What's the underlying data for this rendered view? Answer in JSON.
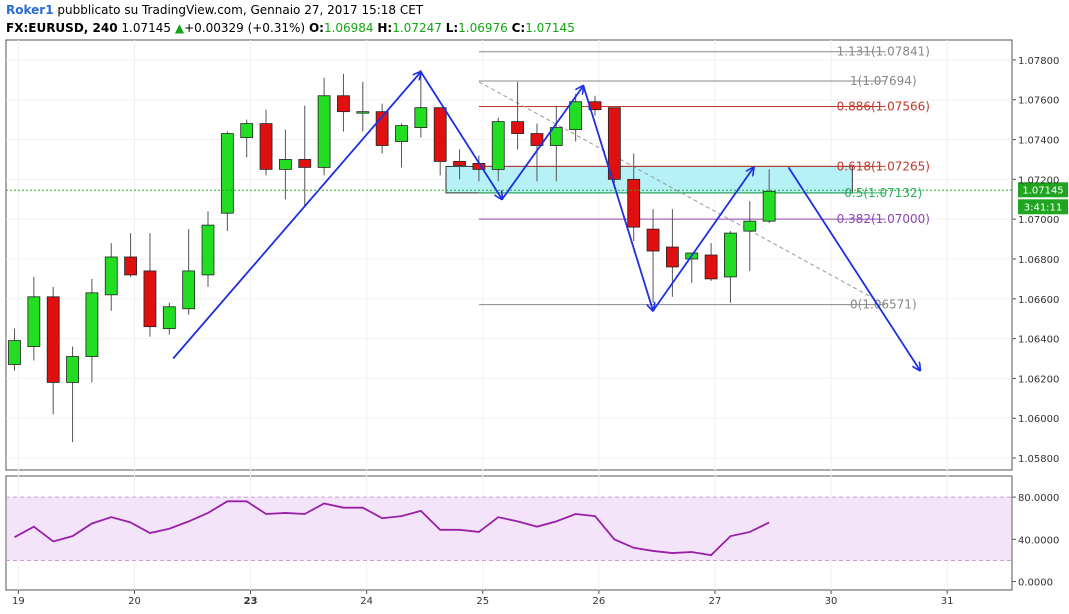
{
  "header": {
    "author": "Roker1",
    "published_text": " pubblicato su TradingView.com, Gennaio 27, 2017 15:18 CET",
    "symbol": "FX:EURUSD, 240",
    "last": "1.07145",
    "change_arrow": "▲",
    "change": "+0.00329 (+0.31%)",
    "o_label": "O:",
    "o_value": "1.06984",
    "h_label": "H:",
    "h_value": "1.07247",
    "l_label": "L:",
    "l_value": "1.06976",
    "c_label": "C:",
    "c_value": "1.07145"
  },
  "colors": {
    "bull": "#22dd22",
    "bear": "#e01010",
    "wick": "#555555",
    "arrows": "#1f2fe0",
    "last_price_line": "#22aa22",
    "zone_fill": "#a8eef5",
    "rsi_band_fill": "#f3e4fa",
    "rsi_line": "#9a1fa8"
  },
  "chart_data": {
    "type": "candlestick",
    "symbol": "FX:EURUSD",
    "interval": "240",
    "y_ticks": [
      "1.05800",
      "1.06000",
      "1.06200",
      "1.06400",
      "1.06600",
      "1.06800",
      "1.07000",
      "1.07200",
      "1.07400",
      "1.07600",
      "1.07800"
    ],
    "ylim": [
      1.0574,
      1.079
    ],
    "x_ticks": [
      {
        "label": "19",
        "x": 0.2,
        "bold": false
      },
      {
        "label": "20",
        "x": 6.2,
        "bold": false
      },
      {
        "label": "23",
        "x": 12.2,
        "bold": true
      },
      {
        "label": "24",
        "x": 18.2,
        "bold": false
      },
      {
        "label": "25",
        "x": 24.2,
        "bold": false
      },
      {
        "label": "26",
        "x": 30.2,
        "bold": false
      },
      {
        "label": "27",
        "x": 36.2,
        "bold": false
      },
      {
        "label": "30",
        "x": 42.2,
        "bold": false
      },
      {
        "label": "31",
        "x": 48.2,
        "bold": false
      }
    ],
    "candles": [
      {
        "o": 1.0627,
        "h": 1.0645,
        "l": 1.0624,
        "c": 1.0639
      },
      {
        "o": 1.0636,
        "h": 1.0671,
        "l": 1.0629,
        "c": 1.0661
      },
      {
        "o": 1.0661,
        "h": 1.0666,
        "l": 1.0602,
        "c": 1.0618
      },
      {
        "o": 1.0618,
        "h": 1.0636,
        "l": 1.0588,
        "c": 1.0631
      },
      {
        "o": 1.0631,
        "h": 1.067,
        "l": 1.0618,
        "c": 1.0663
      },
      {
        "o": 1.0662,
        "h": 1.0688,
        "l": 1.0654,
        "c": 1.0681
      },
      {
        "o": 1.0681,
        "h": 1.0693,
        "l": 1.0671,
        "c": 1.0672
      },
      {
        "o": 1.0674,
        "h": 1.0693,
        "l": 1.0641,
        "c": 1.0646
      },
      {
        "o": 1.0645,
        "h": 1.0658,
        "l": 1.0642,
        "c": 1.0656
      },
      {
        "o": 1.0655,
        "h": 1.0695,
        "l": 1.0652,
        "c": 1.0674
      },
      {
        "o": 1.0672,
        "h": 1.0704,
        "l": 1.0666,
        "c": 1.0697
      },
      {
        "o": 1.0703,
        "h": 1.0744,
        "l": 1.0694,
        "c": 1.0743
      },
      {
        "o": 1.0741,
        "h": 1.075,
        "l": 1.0731,
        "c": 1.0748
      },
      {
        "o": 1.0748,
        "h": 1.0755,
        "l": 1.0722,
        "c": 1.0725
      },
      {
        "o": 1.0725,
        "h": 1.0745,
        "l": 1.071,
        "c": 1.073
      },
      {
        "o": 1.073,
        "h": 1.0757,
        "l": 1.0706,
        "c": 1.0726
      },
      {
        "o": 1.0726,
        "h": 1.0771,
        "l": 1.0722,
        "c": 1.0762
      },
      {
        "o": 1.0762,
        "h": 1.0773,
        "l": 1.0744,
        "c": 1.0754
      },
      {
        "o": 1.0754,
        "h": 1.0769,
        "l": 1.0744,
        "c": 1.0754
      },
      {
        "o": 1.0754,
        "h": 1.0758,
        "l": 1.0733,
        "c": 1.0737
      },
      {
        "o": 1.0739,
        "h": 1.0748,
        "l": 1.0726,
        "c": 1.0747
      },
      {
        "o": 1.0746,
        "h": 1.0775,
        "l": 1.0741,
        "c": 1.0756
      },
      {
        "o": 1.0756,
        "h": 1.0756,
        "l": 1.0722,
        "c": 1.0729
      },
      {
        "o": 1.0729,
        "h": 1.0735,
        "l": 1.072,
        "c": 1.0727
      },
      {
        "o": 1.0728,
        "h": 1.0732,
        "l": 1.0719,
        "c": 1.0725
      },
      {
        "o": 1.0725,
        "h": 1.0751,
        "l": 1.0719,
        "c": 1.0749
      },
      {
        "o": 1.0749,
        "h": 1.0769,
        "l": 1.0735,
        "c": 1.0743
      },
      {
        "o": 1.0743,
        "h": 1.0748,
        "l": 1.0719,
        "c": 1.0737
      },
      {
        "o": 1.0737,
        "h": 1.0757,
        "l": 1.0719,
        "c": 1.0746
      },
      {
        "o": 1.0745,
        "h": 1.0763,
        "l": 1.0739,
        "c": 1.0759
      },
      {
        "o": 1.0759,
        "h": 1.0762,
        "l": 1.0752,
        "c": 1.0755
      },
      {
        "o": 1.0756,
        "h": 1.0756,
        "l": 1.0718,
        "c": 1.072
      },
      {
        "o": 1.072,
        "h": 1.0733,
        "l": 1.0689,
        "c": 1.0696
      },
      {
        "o": 1.0695,
        "h": 1.0705,
        "l": 1.0658,
        "c": 1.0684
      },
      {
        "o": 1.0686,
        "h": 1.0705,
        "l": 1.0661,
        "c": 1.0676
      },
      {
        "o": 1.068,
        "h": 1.0683,
        "l": 1.0668,
        "c": 1.0683
      },
      {
        "o": 1.0682,
        "h": 1.0688,
        "l": 1.0669,
        "c": 1.067
      },
      {
        "o": 1.0671,
        "h": 1.0694,
        "l": 1.0658,
        "c": 1.0693
      },
      {
        "o": 1.0694,
        "h": 1.0709,
        "l": 1.0674,
        "c": 1.0699
      },
      {
        "o": 1.0699,
        "h": 1.0725,
        "l": 1.0698,
        "c": 1.0714
      }
    ],
    "fibonacci": [
      {
        "label": "1.131(1.07841)",
        "price": 1.07841,
        "color": "#888888"
      },
      {
        "label": "1(1.07694)",
        "price": 1.07694,
        "color": "#888888"
      },
      {
        "label": "0.886(1.07566)",
        "price": 1.07566,
        "color": "#c0392b"
      },
      {
        "label": "0.618(1.07265)",
        "price": 1.07265,
        "color": "#c0392b"
      },
      {
        "label": "0.5(1.07132)",
        "price": 1.07132,
        "color": "#27ae60"
      },
      {
        "label": "0.382(1.07000)",
        "price": 1.07,
        "color": "#8e44ad"
      },
      {
        "label": "0(1.06571)",
        "price": 1.06571,
        "color": "#888888"
      }
    ],
    "resistance_zone": {
      "x_start": 22.3,
      "x_end": 43.3,
      "price_top": 1.07265,
      "price_bottom": 1.07132
    },
    "projection_arrows": [
      [
        {
          "x": 8.2,
          "p": 1.063
        },
        {
          "x": 21.0,
          "p": 1.0774
        }
      ],
      [
        {
          "x": 21.0,
          "p": 1.0774
        },
        {
          "x": 25.2,
          "p": 1.071
        }
      ],
      [
        {
          "x": 25.2,
          "p": 1.071
        },
        {
          "x": 29.4,
          "p": 1.0767
        }
      ],
      [
        {
          "x": 29.4,
          "p": 1.0767
        },
        {
          "x": 33.0,
          "p": 1.0654
        }
      ],
      [
        {
          "x": 33.0,
          "p": 1.0654
        },
        {
          "x": 38.2,
          "p": 1.0726
        }
      ],
      [
        {
          "x": 40.0,
          "p": 1.0726
        },
        {
          "x": 46.8,
          "p": 1.0624
        }
      ]
    ],
    "trend_line": [
      {
        "x": 24.0,
        "p": 1.0769
      },
      {
        "x": 45.0,
        "p": 1.0657
      }
    ],
    "last_price": "1.07145",
    "countdown": "3:41:11",
    "rsi": {
      "ticks": [
        "80.0000",
        "40.0000",
        "0.0000"
      ],
      "band": [
        20,
        80
      ],
      "ylim": [
        -8,
        100
      ],
      "values": [
        42,
        52,
        38,
        43,
        55,
        61,
        56,
        46,
        50,
        57,
        65,
        76,
        76,
        64,
        65,
        64,
        74,
        70,
        70,
        60,
        62,
        67,
        49,
        49,
        47,
        61,
        57,
        52,
        57,
        64,
        62,
        40,
        32,
        29,
        27,
        28,
        25,
        43,
        47,
        56
      ]
    }
  }
}
